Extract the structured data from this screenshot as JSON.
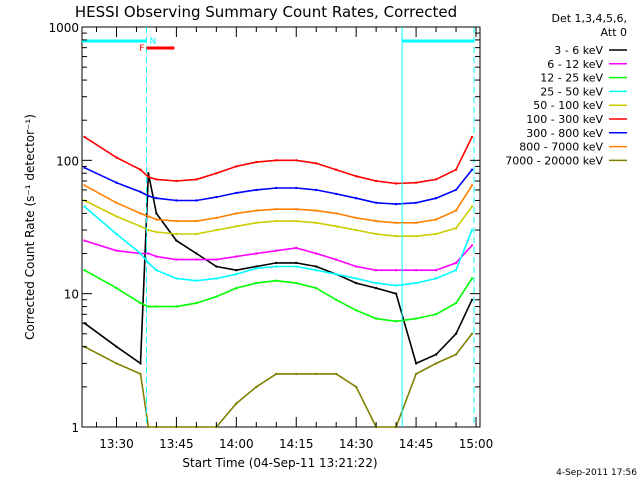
{
  "chart_data": {
    "type": "line",
    "title": "HESSI Observing Summary Count Rates, Corrected",
    "xlabel": "Start Time (04-Sep-11 13:21:22)",
    "ylabel": "Corrected Count Rate (s⁻¹ detector⁻¹)",
    "y_scale": "log",
    "ylim": [
      1,
      1000
    ],
    "y_ticks": [
      1,
      10,
      100,
      1000
    ],
    "y_tick_labels": [
      "1",
      "10",
      "100",
      "1000"
    ],
    "xlim": [
      "13:21:22",
      "15:01:00"
    ],
    "x_tick_labels": [
      "13:30",
      "13:45",
      "14:00",
      "14:15",
      "14:30",
      "14:45",
      "15:00"
    ],
    "legend_title": [
      "Det 1,3,4,5,6,",
      "Att 0"
    ],
    "legend_position": "right",
    "timestamp": "4-Sep-2011 17:56",
    "markers": {
      "saa_label": "F",
      "night_label": "N",
      "saa_color": "#ff0000",
      "night_color": "#00ffff",
      "saa_interval": [
        "13:37:30",
        "13:44:30"
      ],
      "night_interval": [
        "13:38:30",
        "13:36:00"
      ]
    },
    "x": [
      "13:22",
      "13:30",
      "13:36",
      "13:38",
      "13:40",
      "13:45",
      "13:50",
      "13:55",
      "14:00",
      "14:05",
      "14:10",
      "14:15",
      "14:20",
      "14:25",
      "14:30",
      "14:35",
      "14:40",
      "14:45",
      "14:50",
      "14:55",
      "14:59"
    ],
    "series": [
      {
        "name": "3 - 6 keV",
        "color": "#000000",
        "values": [
          6,
          4,
          3,
          80,
          40,
          25,
          20,
          16,
          15,
          16,
          17,
          17,
          16,
          14,
          12,
          11,
          10,
          3,
          3.5,
          5,
          9
        ]
      },
      {
        "name": "6 - 12 keV",
        "color": "#ff00ff",
        "values": [
          25,
          21,
          20,
          20,
          19,
          18,
          18,
          18,
          19,
          20,
          21,
          22,
          20,
          18,
          16,
          15,
          15,
          15,
          15,
          17,
          23
        ]
      },
      {
        "name": "12 - 25 keV",
        "color": "#00ff00",
        "values": [
          15,
          11,
          8.5,
          8,
          8,
          8,
          8.5,
          9.5,
          11,
          12,
          12.5,
          12,
          11,
          9,
          7.5,
          6.5,
          6.2,
          6.5,
          7,
          8.5,
          13
        ]
      },
      {
        "name": "25 - 50 keV",
        "color": "#00ffff",
        "values": [
          45,
          28,
          20,
          17,
          15,
          13,
          12.5,
          13,
          14,
          15.5,
          16,
          16,
          15,
          14,
          13,
          12,
          11.5,
          12,
          13,
          15,
          30
        ]
      },
      {
        "name": "50 - 100 keV",
        "color": "#cccc00",
        "values": [
          50,
          38,
          32,
          30,
          29,
          28,
          28,
          30,
          32,
          34,
          35,
          35,
          34,
          32,
          30,
          28,
          27,
          27,
          28,
          31,
          45
        ]
      },
      {
        "name": "100 - 300 keV",
        "color": "#ff0000",
        "values": [
          150,
          105,
          85,
          75,
          72,
          70,
          72,
          80,
          90,
          97,
          100,
          100,
          95,
          85,
          76,
          70,
          67,
          68,
          72,
          85,
          150
        ]
      },
      {
        "name": "300 - 800 keV",
        "color": "#0000ff",
        "values": [
          88,
          68,
          58,
          54,
          52,
          50,
          50,
          53,
          57,
          60,
          62,
          62,
          60,
          56,
          52,
          48,
          47,
          48,
          52,
          60,
          85
        ]
      },
      {
        "name": "800 - 7000 keV",
        "color": "#ff8000",
        "values": [
          65,
          48,
          40,
          38,
          36,
          35,
          35,
          37,
          40,
          42,
          43,
          43,
          42,
          40,
          37,
          35,
          34,
          34,
          36,
          42,
          65
        ]
      },
      {
        "name": "7000 - 20000 keV",
        "color": "#808000",
        "values": [
          4,
          3,
          2.5,
          1,
          1,
          1,
          1,
          1,
          1.5,
          2,
          2.5,
          2.5,
          2.5,
          2.5,
          2,
          1,
          1,
          2.5,
          3,
          3.5,
          5
        ]
      }
    ]
  }
}
